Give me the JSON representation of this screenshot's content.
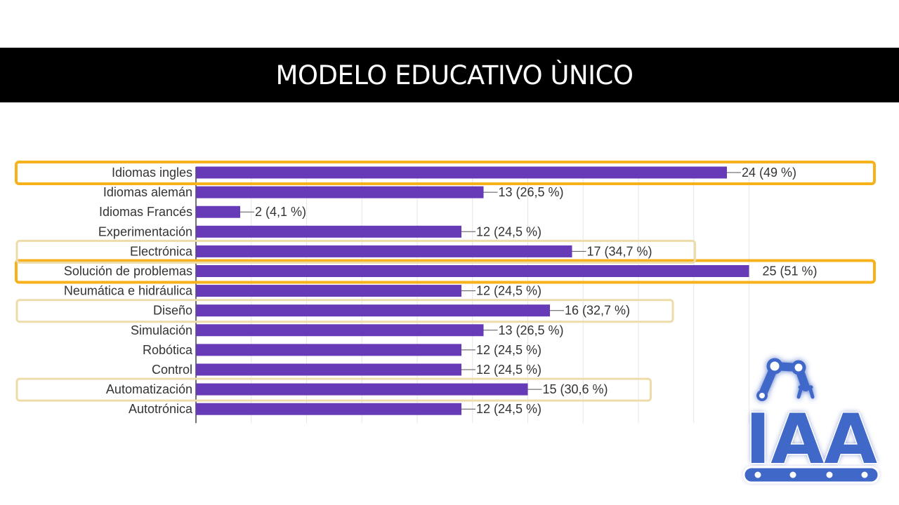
{
  "title": "MODELO EDUCATIVO ÙNICO",
  "chart_data": {
    "type": "bar",
    "orientation": "horizontal",
    "bar_color": "#673ab7",
    "highlight_strong_color": "#f7b21b",
    "highlight_soft_color": "#eddcaa",
    "xlim": [
      0,
      25
    ],
    "grid": true,
    "categories": [
      "Idiomas ingles",
      "Idiomas alemán",
      "Idiomas Francés",
      "Experimentación",
      "Electrónica",
      "Solución de problemas",
      "Neumática e hidráulica",
      "Diseño",
      "Simulación",
      "Robótica",
      "Control",
      "Automatización",
      "Autotrónica"
    ],
    "values": [
      24,
      13,
      2,
      12,
      17,
      25,
      12,
      16,
      13,
      12,
      12,
      15,
      12
    ],
    "data_labels": [
      "24 (49 %)",
      "13 (26,5 %)",
      "2 (4,1 %)",
      "12 (24,5 %)",
      "17 (34,7 %)",
      "25 (51 %)",
      "12 (24,5 %)",
      "16 (32,7 %)",
      "13 (26,5 %)",
      "12 (24,5 %)",
      "12 (24,5 %)",
      "15 (30,6 %)",
      "12 (24,5 %)"
    ],
    "highlights": [
      {
        "category": "Idiomas ingles",
        "style": "strong"
      },
      {
        "category": "Solución de problemas",
        "style": "strong"
      },
      {
        "category": "Electrónica",
        "style": "soft"
      },
      {
        "category": "Diseño",
        "style": "soft"
      },
      {
        "category": "Automatización",
        "style": "soft"
      }
    ]
  },
  "logo": {
    "text": "IAA",
    "color": "#3f67c8",
    "icon": "robot-arm-conveyor-logo"
  }
}
